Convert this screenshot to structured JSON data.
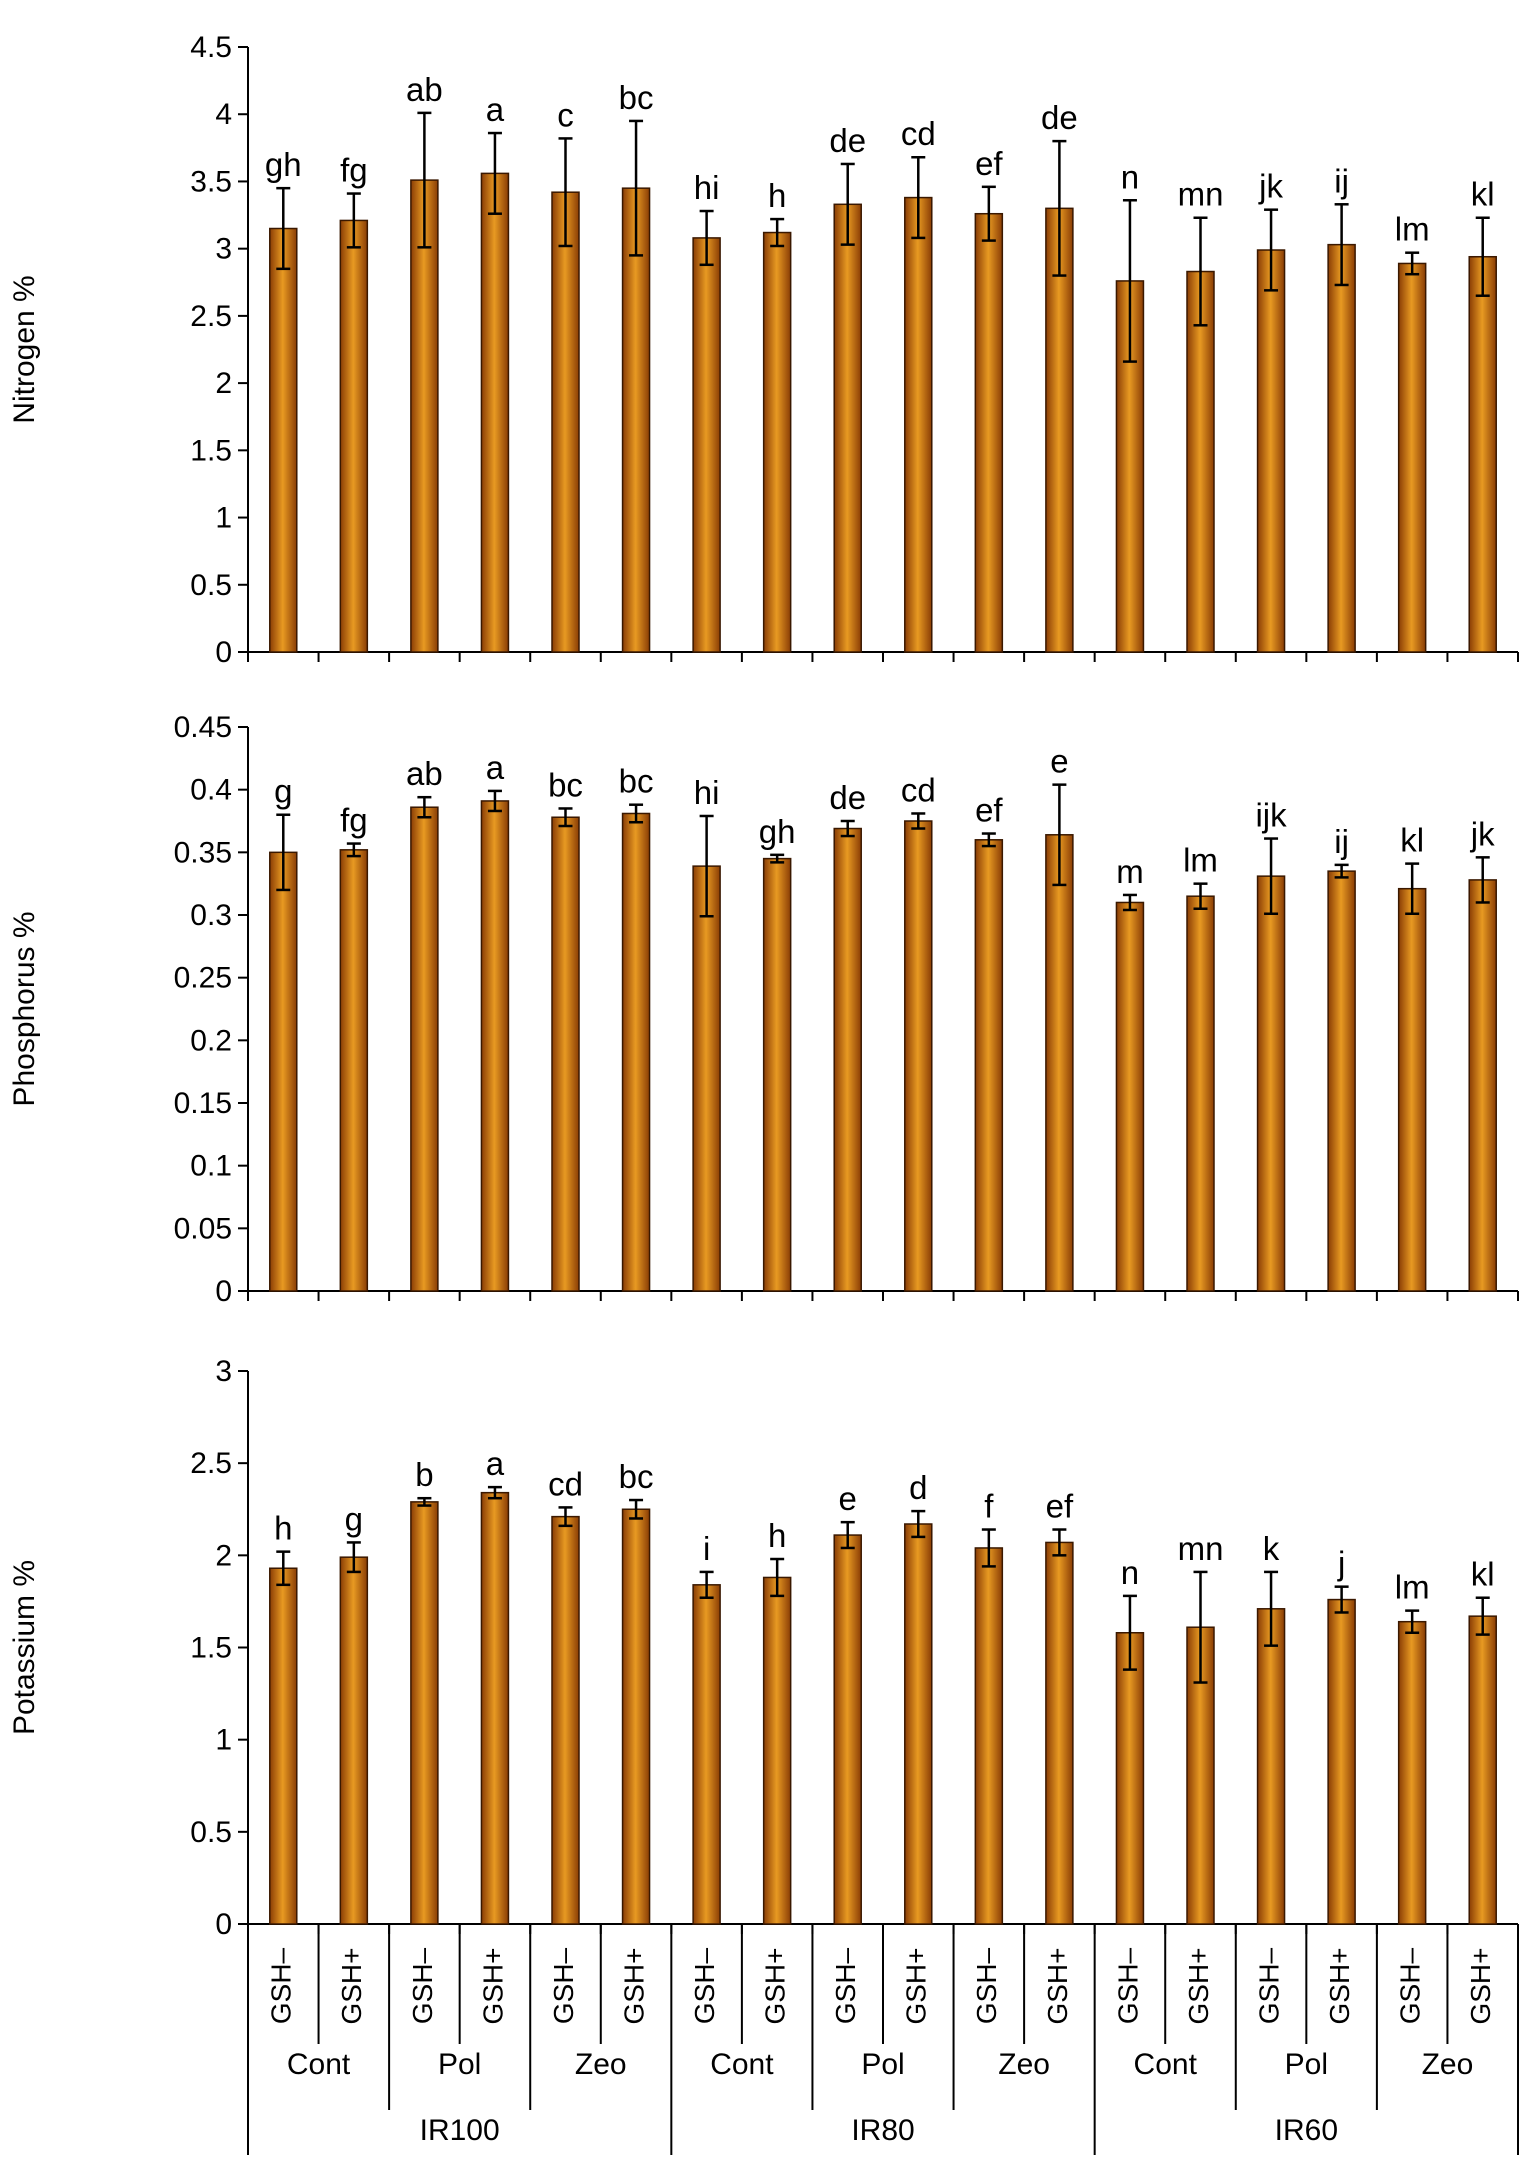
{
  "colors": {
    "bar_fill": "#8a3d05",
    "bar_highlight": "#e89a22",
    "bar_edge": "#3a1800",
    "axis": "#000000",
    "error_bar": "#000000"
  },
  "chart_data": [
    {
      "type": "bar",
      "ylabel": "Nitrogen %",
      "ylim": [
        0,
        4.5
      ],
      "yticks": [
        0,
        0.5,
        1,
        1.5,
        2,
        2.5,
        3,
        3.5,
        4,
        4.5
      ],
      "ytick_labels": [
        "0",
        "0.5",
        "1",
        "1.5",
        "2",
        "2.5",
        "3",
        "3.5",
        "4",
        "4.5"
      ],
      "values": [
        3.15,
        3.21,
        3.51,
        3.56,
        3.42,
        3.45,
        3.08,
        3.12,
        3.33,
        3.38,
        3.26,
        3.3,
        2.76,
        2.83,
        2.99,
        3.03,
        2.89,
        2.94
      ],
      "errors": [
        0.3,
        0.2,
        0.5,
        0.3,
        0.4,
        0.5,
        0.2,
        0.1,
        0.3,
        0.3,
        0.2,
        0.5,
        0.6,
        0.4,
        0.3,
        0.3,
        0.08,
        0.29
      ],
      "letters": [
        "gh",
        "fg",
        "ab",
        "a",
        "c",
        "bc",
        "hi",
        "h",
        "de",
        "cd",
        "ef",
        "de",
        "n",
        "mn",
        "jk",
        "ij",
        "lm",
        "kl"
      ]
    },
    {
      "type": "bar",
      "ylabel": "Phosphorus %",
      "ylim": [
        0,
        0.45
      ],
      "yticks": [
        0,
        0.05,
        0.1,
        0.15,
        0.2,
        0.25,
        0.3,
        0.35,
        0.4,
        0.45
      ],
      "ytick_labels": [
        "0",
        "0.05",
        "0.1",
        "0.15",
        "0.2",
        "0.25",
        "0.3",
        "0.35",
        "0.4",
        "0.45"
      ],
      "values": [
        0.35,
        0.352,
        0.386,
        0.391,
        0.378,
        0.381,
        0.339,
        0.345,
        0.369,
        0.375,
        0.36,
        0.364,
        0.31,
        0.315,
        0.331,
        0.335,
        0.321,
        0.328
      ],
      "errors": [
        0.03,
        0.005,
        0.008,
        0.008,
        0.007,
        0.007,
        0.04,
        0.003,
        0.006,
        0.006,
        0.005,
        0.04,
        0.006,
        0.01,
        0.03,
        0.005,
        0.02,
        0.018
      ],
      "letters": [
        "g",
        "fg",
        "ab",
        "a",
        "bc",
        "bc",
        "hi",
        "gh",
        "de",
        "cd",
        "ef",
        "e",
        "m",
        "lm",
        "ijk",
        "ij",
        "kl",
        "jk"
      ]
    },
    {
      "type": "bar",
      "ylabel": "Potassium %",
      "ylim": [
        0,
        3
      ],
      "yticks": [
        0,
        0.5,
        1,
        1.5,
        2,
        2.5,
        3
      ],
      "ytick_labels": [
        "0",
        "0.5",
        "1",
        "1.5",
        "2",
        "2.5",
        "3"
      ],
      "values": [
        1.93,
        1.99,
        2.29,
        2.34,
        2.21,
        2.25,
        1.84,
        1.88,
        2.11,
        2.17,
        2.04,
        2.07,
        1.58,
        1.61,
        1.71,
        1.76,
        1.64,
        1.67
      ],
      "errors": [
        0.09,
        0.08,
        0.02,
        0.03,
        0.05,
        0.05,
        0.07,
        0.1,
        0.07,
        0.07,
        0.1,
        0.07,
        0.2,
        0.3,
        0.2,
        0.07,
        0.06,
        0.1
      ],
      "letters": [
        "h",
        "g",
        "b",
        "a",
        "cd",
        "bc",
        "i",
        "h",
        "e",
        "d",
        "f",
        "ef",
        "n",
        "mn",
        "k",
        "j",
        "lm",
        "kl"
      ]
    }
  ],
  "x_axis": {
    "categories": [
      "GSH–",
      "GSH+",
      "GSH–",
      "GSH+",
      "GSH–",
      "GSH+",
      "GSH–",
      "GSH+",
      "GSH–",
      "GSH+",
      "GSH–",
      "GSH+",
      "GSH–",
      "GSH+",
      "GSH–",
      "GSH+",
      "GSH–",
      "GSH+"
    ],
    "subgroups": [
      "Cont",
      "Pol",
      "Zeo",
      "Cont",
      "Pol",
      "Zeo",
      "Cont",
      "Pol",
      "Zeo"
    ],
    "groups": [
      "IR100",
      "IR80",
      "IR60"
    ]
  }
}
